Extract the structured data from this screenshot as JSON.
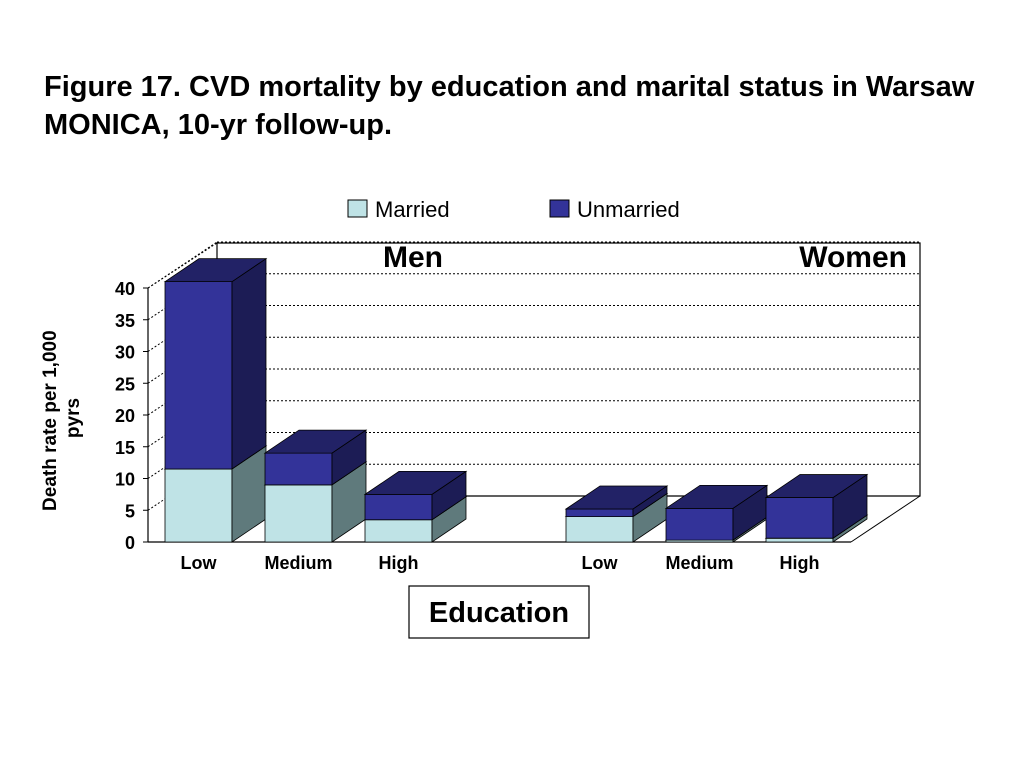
{
  "figure": {
    "title": "Figure 17. CVD mortality by education and marital status in Warsaw MONICA, 10-yr follow-up."
  },
  "chart_data": {
    "type": "bar",
    "stacked": true,
    "three_d": true,
    "ylabel": "Death rate per 1,000 pyrs",
    "xlabel": "Education",
    "ylim": [
      0,
      40
    ],
    "yticks": [
      0,
      5,
      10,
      15,
      20,
      25,
      30,
      35,
      40
    ],
    "grid": true,
    "legend_position": "top",
    "groups": [
      {
        "label": "Men",
        "categories": [
          "Low",
          "Medium",
          "High"
        ]
      },
      {
        "label": "Women",
        "categories": [
          "Low",
          "Medium",
          "High"
        ]
      }
    ],
    "series": [
      {
        "name": "Married",
        "color": "#bfe3e6",
        "values": [
          11.5,
          9,
          3.5,
          4,
          0.3,
          0.6
        ]
      },
      {
        "name": "Unmarried",
        "color": "#333399",
        "values": [
          29.5,
          5,
          4,
          1.2,
          5,
          6.4
        ]
      }
    ]
  }
}
